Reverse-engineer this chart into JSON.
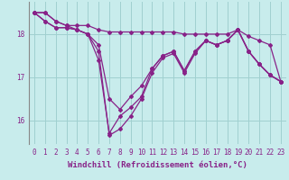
{
  "background_color": "#c8ecec",
  "grid_color": "#a0d0d0",
  "line_color": "#882288",
  "marker": "D",
  "marker_size": 2,
  "line_width": 0.9,
  "xlabel": "Windchill (Refroidissement éolien,°C)",
  "xlabel_fontsize": 6.5,
  "tick_fontsize": 5.5,
  "x_hours": [
    0,
    1,
    2,
    3,
    4,
    5,
    6,
    7,
    8,
    9,
    10,
    11,
    12,
    13,
    14,
    15,
    16,
    17,
    18,
    19,
    20,
    21,
    22,
    23
  ],
  "series": [
    [
      18.5,
      18.5,
      18.3,
      18.2,
      18.2,
      18.2,
      18.1,
      18.05,
      18.05,
      18.05,
      18.05,
      18.05,
      18.05,
      18.05,
      18.0,
      18.0,
      18.0,
      18.0,
      18.0,
      18.1,
      17.95,
      17.85,
      17.75,
      16.9
    ],
    [
      18.5,
      18.5,
      18.3,
      18.2,
      18.1,
      18.0,
      17.6,
      15.65,
      15.8,
      16.1,
      16.5,
      17.1,
      17.45,
      17.55,
      17.1,
      17.55,
      17.85,
      17.75,
      17.85,
      18.1,
      17.6,
      17.3,
      17.05,
      16.9
    ],
    [
      18.5,
      18.3,
      18.15,
      18.15,
      18.1,
      18.0,
      17.75,
      16.5,
      16.25,
      16.55,
      16.8,
      17.2,
      17.5,
      17.6,
      17.15,
      17.6,
      17.85,
      17.75,
      17.85,
      18.1,
      17.6,
      17.3,
      17.05,
      16.9
    ],
    [
      18.5,
      18.3,
      18.15,
      18.15,
      18.1,
      18.0,
      17.4,
      15.7,
      16.1,
      16.3,
      16.55,
      17.2,
      17.5,
      17.6,
      17.15,
      17.6,
      17.85,
      17.75,
      17.85,
      18.1,
      17.6,
      17.3,
      17.05,
      16.9
    ]
  ],
  "ylim": [
    15.45,
    18.75
  ],
  "yticks": [
    16,
    17,
    18
  ],
  "xlim": [
    -0.5,
    23.5
  ]
}
